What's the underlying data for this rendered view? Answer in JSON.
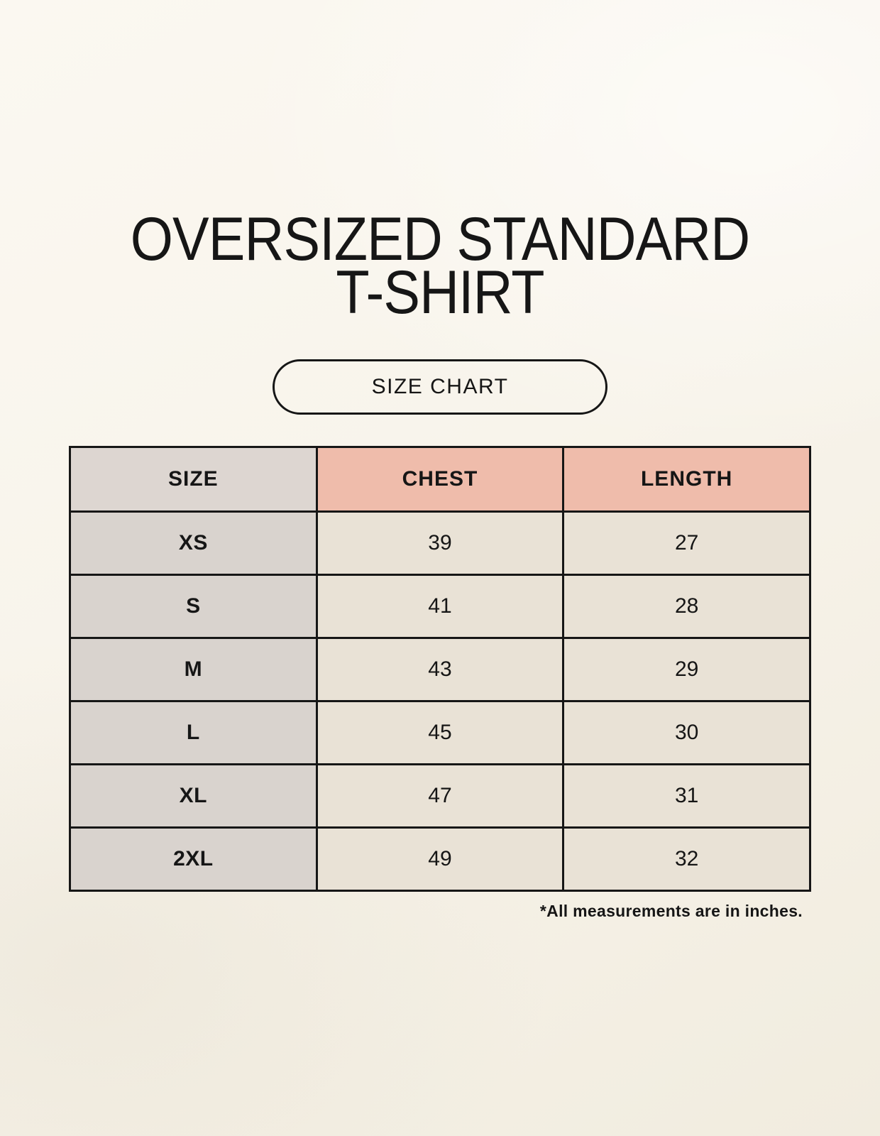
{
  "header": {
    "title_line1": "OVERSIZED STANDARD",
    "title_line2": "T-SHIRT",
    "size_chart_label": "SIZE CHART"
  },
  "chart_data": {
    "type": "table",
    "title": "OVERSIZED STANDARD T-SHIRT",
    "columns": [
      "SIZE",
      "CHEST",
      "LENGTH"
    ],
    "rows": [
      {
        "size": "XS",
        "chest": 39,
        "length": 27
      },
      {
        "size": "S",
        "chest": 41,
        "length": 28
      },
      {
        "size": "M",
        "chest": 43,
        "length": 29
      },
      {
        "size": "L",
        "chest": 45,
        "length": 30
      },
      {
        "size": "XL",
        "chest": 47,
        "length": 31
      },
      {
        "size": "2XL",
        "chest": 49,
        "length": 32
      }
    ],
    "annotation": "*All measurements are in inches.",
    "units": "inches"
  },
  "colors": {
    "page_background": "#f7f3ea",
    "size_header_bg": "#ddd6d1",
    "measurement_header_bg": "#efbcab",
    "size_column_bg": "#d9d3ce",
    "value_cell_bg": "#e9e2d6",
    "table_border": "#161616",
    "text": "#161616"
  }
}
